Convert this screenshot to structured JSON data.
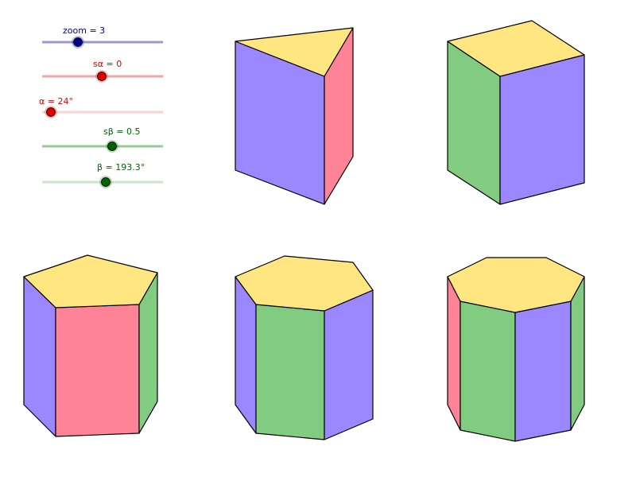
{
  "colors": {
    "face_top": "#FFE680",
    "face_blue": "#9B87FF",
    "face_pink": "#FF8397",
    "face_green": "#81CC80",
    "slider_navy": "#00008B",
    "slider_red": "#E00000",
    "slider_green": "#006400"
  },
  "sliders": [
    {
      "id": "zoom",
      "label": "zoom = 3",
      "value": 3,
      "min": 1,
      "max": 10,
      "color": "#00008B",
      "track": "#9999D0"
    },
    {
      "id": "s_alpha",
      "label": "sα = 0",
      "value": 0,
      "min": -1,
      "max": 1,
      "color": "#E00000",
      "track": "#F5A5A5"
    },
    {
      "id": "alpha",
      "label": "α = 24°",
      "value": 24,
      "min": 0,
      "max": 360,
      "color": "#E00000",
      "track": "#F9D2D2"
    },
    {
      "id": "s_beta",
      "label": "sβ = 0.5",
      "value": 0.5,
      "min": -1,
      "max": 1,
      "color": "#006400",
      "track": "#99C899"
    },
    {
      "id": "beta",
      "label": "β = 193.3°",
      "value": 193.3,
      "min": 0,
      "max": 360,
      "color": "#006400",
      "track": "#CCE3CC"
    }
  ],
  "prisms": [
    {
      "name": "triangular-prism",
      "sides": 3
    },
    {
      "name": "square-prism",
      "sides": 4
    },
    {
      "name": "pentagonal-prism",
      "sides": 5
    },
    {
      "name": "hexagonal-prism",
      "sides": 6
    },
    {
      "name": "heptagonal-prism",
      "sides": 7
    }
  ]
}
